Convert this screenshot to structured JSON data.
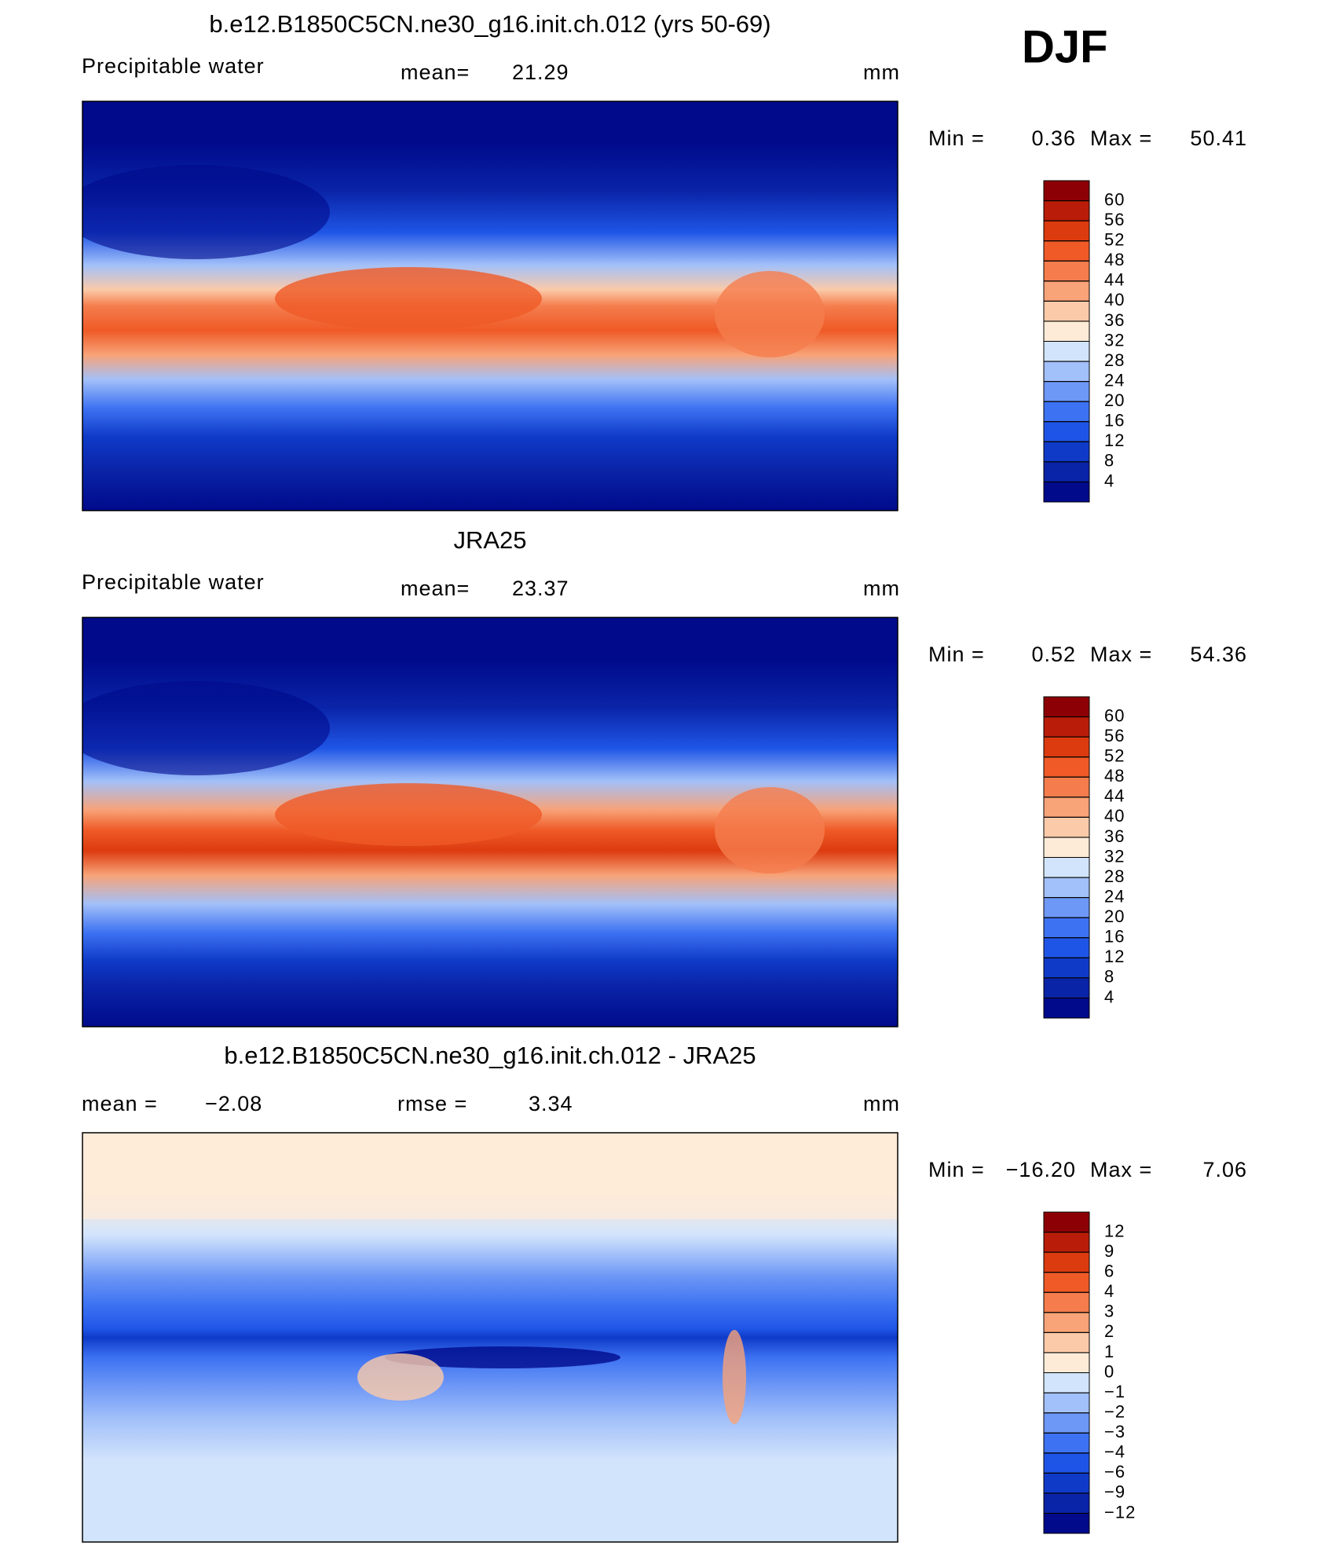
{
  "season": "DJF",
  "panels": [
    {
      "title": "b.e12.B1850C5CN.ne30_g16.init.ch.012 (yrs 50-69)",
      "header_left": "Precipitable water",
      "stat_label": "mean=",
      "stat_value": 21.29,
      "units": "mm",
      "min_label": "Min =",
      "min_value": 0.36,
      "max_label": "Max =",
      "max_value": 50.41,
      "colorbar": {
        "levels": [
          60,
          56,
          52,
          48,
          44,
          40,
          36,
          32,
          28,
          24,
          20,
          16,
          12,
          8,
          4
        ],
        "colors": [
          "#8c0005",
          "#b91c08",
          "#dc3b0f",
          "#ef5a27",
          "#f57d4d",
          "#f8a378",
          "#fbcaa9",
          "#fdebd8",
          "#d2e4fc",
          "#a2c0f9",
          "#6e98f6",
          "#3d72f2",
          "#1f55e6",
          "#0f3ac8",
          "#0a24a8",
          "#000a8b"
        ]
      }
    },
    {
      "title": "JRA25",
      "header_left": "Precipitable water",
      "stat_label": "mean=",
      "stat_value": 23.37,
      "units": "mm",
      "min_label": "Min =",
      "min_value": 0.52,
      "max_label": "Max =",
      "max_value": 54.36,
      "colorbar": {
        "levels": [
          60,
          56,
          52,
          48,
          44,
          40,
          36,
          32,
          28,
          24,
          20,
          16,
          12,
          8,
          4
        ],
        "colors": [
          "#8c0005",
          "#b91c08",
          "#dc3b0f",
          "#ef5a27",
          "#f57d4d",
          "#f8a378",
          "#fbcaa9",
          "#fdebd8",
          "#d2e4fc",
          "#a2c0f9",
          "#6e98f6",
          "#3d72f2",
          "#1f55e6",
          "#0f3ac8",
          "#0a24a8",
          "#000a8b"
        ]
      }
    },
    {
      "title": "b.e12.B1850C5CN.ne30_g16.init.ch.012 - JRA25",
      "stat_label": "mean =",
      "stat_value": {
        "value": -2.08,
        "label": "−2.08"
      },
      "stat2_label": "rmse =",
      "stat2_value": 3.34,
      "units": "mm",
      "min_label": "Min =",
      "min_value": {
        "value": -16.2,
        "label": "−16.20"
      },
      "max_label": "Max =",
      "max_value": 7.06,
      "colorbar": {
        "levels": [
          12,
          9,
          6,
          4,
          3,
          2,
          1,
          0,
          {
            "value": -1,
            "label": "−1"
          },
          {
            "value": -2,
            "label": "−2"
          },
          {
            "value": -3,
            "label": "−3"
          },
          {
            "value": -4,
            "label": "−4"
          },
          {
            "value": -6,
            "label": "−6"
          },
          {
            "value": -9,
            "label": "−9"
          },
          {
            "value": -12,
            "label": "−12"
          }
        ],
        "colors": [
          "#8c0005",
          "#b91c08",
          "#dc3b0f",
          "#ef5a27",
          "#f57d4d",
          "#f8a378",
          "#fbcaa9",
          "#fdebd8",
          "#d2e4fc",
          "#a2c0f9",
          "#6e98f6",
          "#3d72f2",
          "#1f55e6",
          "#0f3ac8",
          "#0a24a8",
          "#000a8b"
        ]
      }
    }
  ]
}
